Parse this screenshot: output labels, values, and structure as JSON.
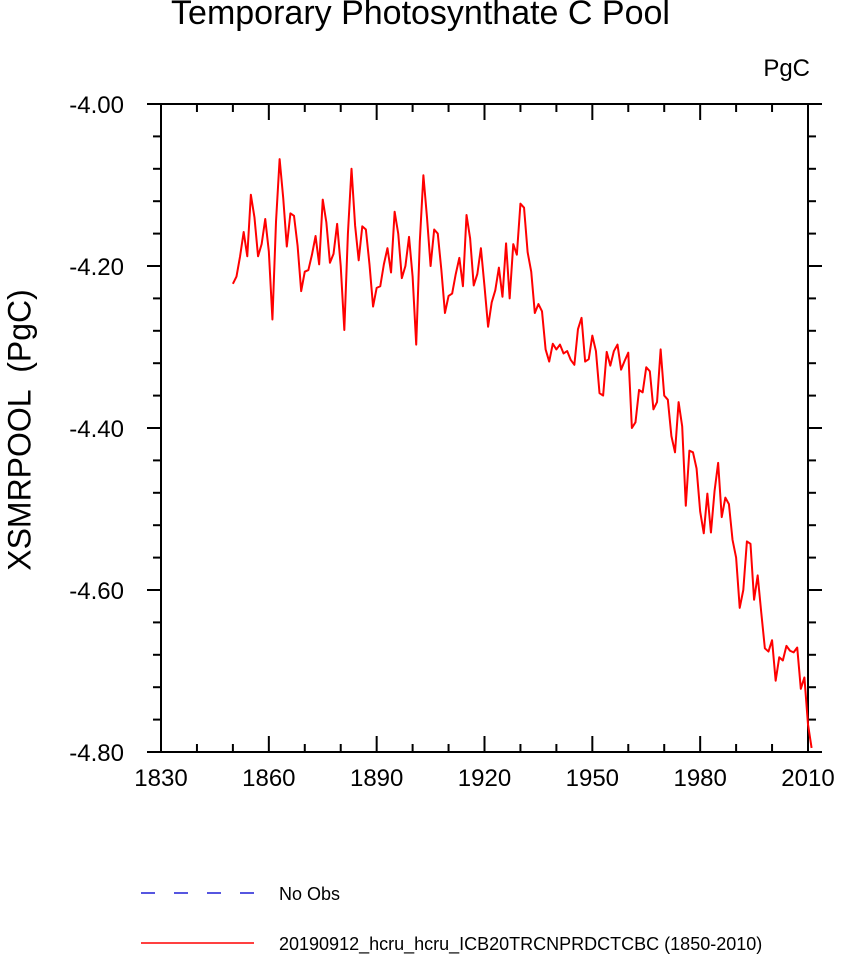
{
  "chart_data": {
    "type": "line",
    "title": "Temporary Photosynthate C Pool",
    "units_label": "PgC",
    "ylabel": "XSMRPOOL  (PgC)",
    "xlim": [
      1830,
      2010
    ],
    "ylim": [
      -4.8,
      -4.0
    ],
    "x_ticks": [
      1830,
      1860,
      1890,
      1920,
      1950,
      1980,
      2010
    ],
    "y_ticks": [
      -4.0,
      -4.2,
      -4.4,
      -4.6,
      -4.8
    ],
    "y_tick_labels": [
      "-4.00",
      "-4.20",
      "-4.40",
      "-4.60",
      "-4.80"
    ],
    "grid": false,
    "legend_position": "bottom",
    "series": [
      {
        "name": "No Obs",
        "color": "#1f1fd6",
        "dash": true,
        "x": [],
        "values": []
      },
      {
        "name": "20190912_hcru_hcru_ICB20TRCNPRDCTCBC (1850-2010)",
        "color": "#ff0000",
        "dash": false,
        "x_start": 1850,
        "x_step": 1,
        "values": [
          -4.222,
          -4.213,
          -4.188,
          -4.158,
          -4.188,
          -4.112,
          -4.14,
          -4.188,
          -4.173,
          -4.142,
          -4.182,
          -4.266,
          -4.145,
          -4.068,
          -4.116,
          -4.176,
          -4.135,
          -4.138,
          -4.175,
          -4.231,
          -4.207,
          -4.205,
          -4.186,
          -4.163,
          -4.198,
          -4.118,
          -4.146,
          -4.196,
          -4.185,
          -4.148,
          -4.2,
          -4.279,
          -4.16,
          -4.08,
          -4.15,
          -4.193,
          -4.151,
          -4.155,
          -4.198,
          -4.25,
          -4.227,
          -4.225,
          -4.198,
          -4.178,
          -4.208,
          -4.133,
          -4.16,
          -4.215,
          -4.2,
          -4.164,
          -4.213,
          -4.297,
          -4.17,
          -4.088,
          -4.14,
          -4.2,
          -4.155,
          -4.16,
          -4.205,
          -4.258,
          -4.237,
          -4.234,
          -4.21,
          -4.19,
          -4.225,
          -4.137,
          -4.166,
          -4.224,
          -4.21,
          -4.178,
          -4.225,
          -4.275,
          -4.245,
          -4.23,
          -4.202,
          -4.238,
          -4.172,
          -4.24,
          -4.173,
          -4.186,
          -4.123,
          -4.128,
          -4.183,
          -4.207,
          -4.258,
          -4.247,
          -4.256,
          -4.303,
          -4.318,
          -4.296,
          -4.303,
          -4.297,
          -4.308,
          -4.305,
          -4.316,
          -4.322,
          -4.278,
          -4.264,
          -4.318,
          -4.315,
          -4.286,
          -4.305,
          -4.357,
          -4.36,
          -4.306,
          -4.323,
          -4.305,
          -4.297,
          -4.328,
          -4.317,
          -4.307,
          -4.4,
          -4.393,
          -4.353,
          -4.356,
          -4.325,
          -4.33,
          -4.377,
          -4.368,
          -4.303,
          -4.36,
          -4.365,
          -4.41,
          -4.43,
          -4.368,
          -4.398,
          -4.496,
          -4.428,
          -4.43,
          -4.45,
          -4.503,
          -4.53,
          -4.481,
          -4.529,
          -4.478,
          -4.443,
          -4.51,
          -4.486,
          -4.494,
          -4.538,
          -4.56,
          -4.622,
          -4.6,
          -4.54,
          -4.543,
          -4.612,
          -4.582,
          -4.628,
          -4.672,
          -4.676,
          -4.662,
          -4.712,
          -4.683,
          -4.687,
          -4.669,
          -4.675,
          -4.677,
          -4.671,
          -4.722,
          -4.708,
          -4.766,
          -4.795
        ]
      }
    ]
  }
}
